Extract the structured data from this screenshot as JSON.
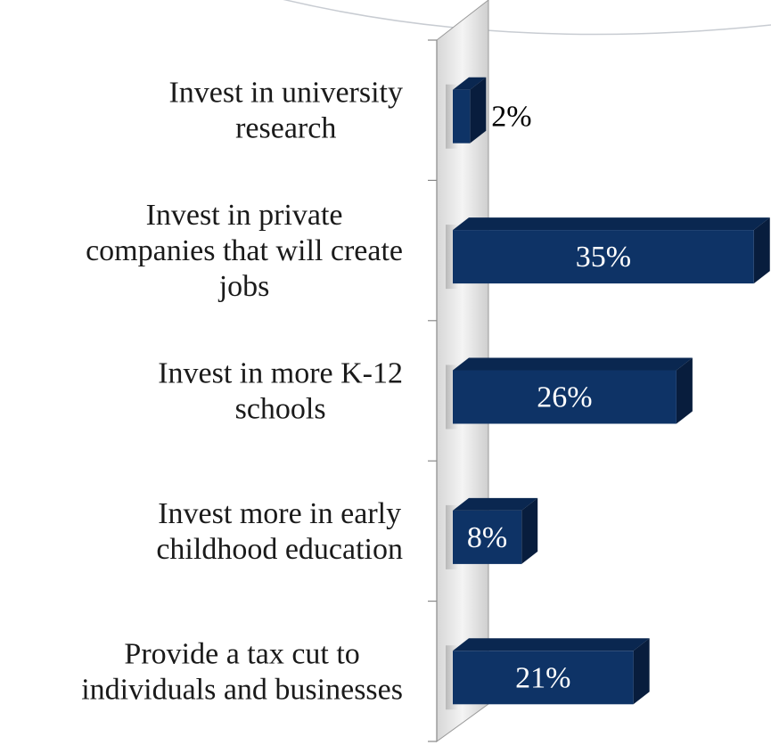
{
  "chart_data": {
    "type": "bar",
    "orientation": "horizontal",
    "style": "3d",
    "categories": [
      "Invest in university research",
      "Invest in private companies that will create jobs",
      "Invest in more K-12 schools",
      "Invest more in early childhood education",
      "Provide a tax cut to individuals and businesses"
    ],
    "category_lines": [
      [
        "Invest in university",
        "research"
      ],
      [
        "Invest in private",
        "companies that will create",
        "jobs"
      ],
      [
        "Invest in more K-12",
        "schools"
      ],
      [
        "Invest more in early",
        "childhood education"
      ],
      [
        "Provide a tax cut to",
        "individuals and businesses"
      ]
    ],
    "values": [
      2,
      35,
      26,
      8,
      21
    ],
    "value_labels": [
      "2%",
      "35%",
      "26%",
      "8%",
      "21%"
    ],
    "unit": "%",
    "xlim": [
      0,
      35
    ],
    "grid": false,
    "legend": "none",
    "colors": {
      "bar_front": "#0e3366",
      "bar_top": "#0a2750",
      "bar_side": "#081d3d",
      "label_inside": "#ffffff",
      "label_outside": "#000000",
      "category_text": "#1a1a1a",
      "axis": "#888888"
    }
  }
}
